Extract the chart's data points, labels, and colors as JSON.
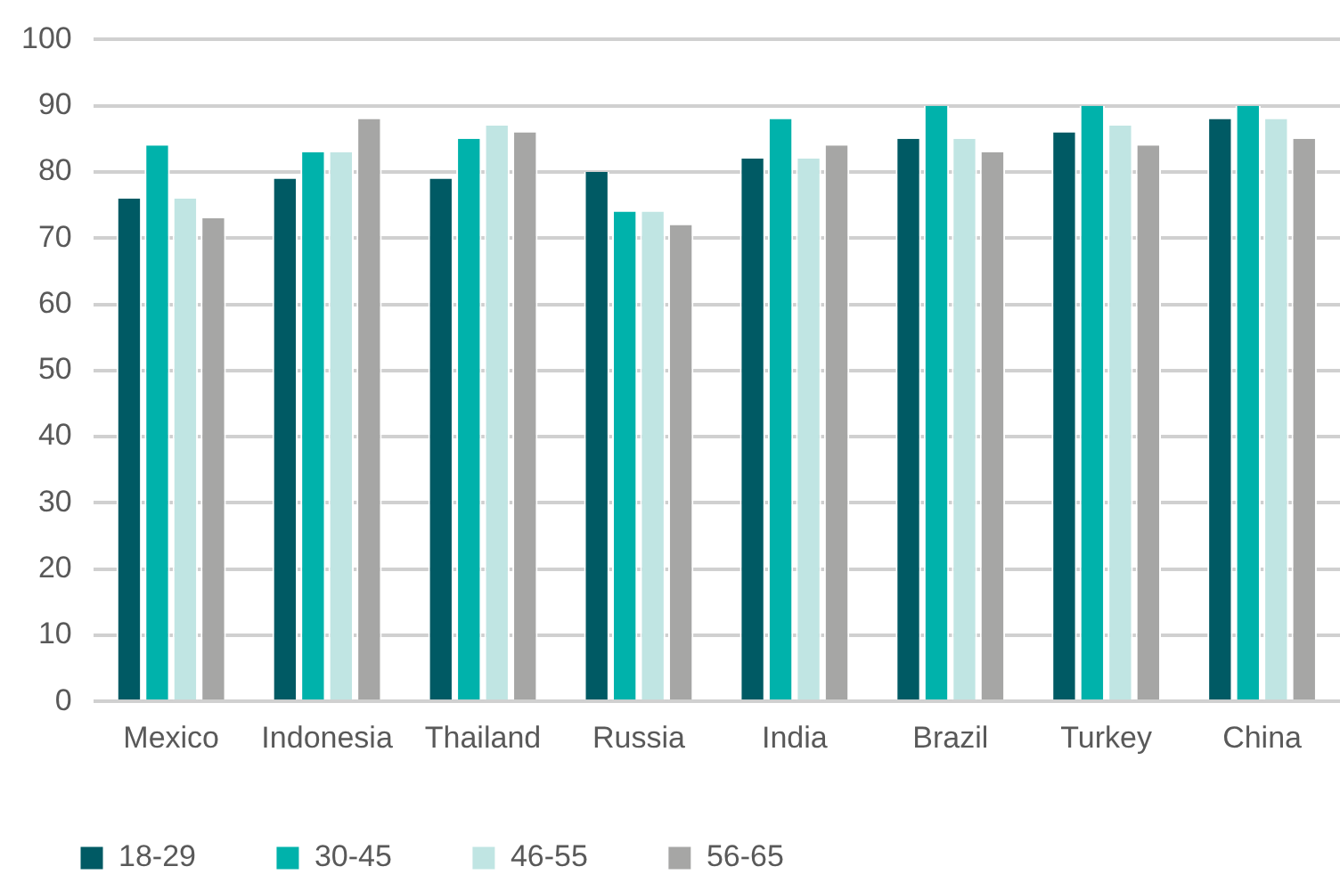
{
  "chart_data": {
    "type": "bar",
    "categories": [
      "Mexico",
      "Indonesia",
      "Thailand",
      "Russia",
      "India",
      "Brazil",
      "Turkey",
      "China"
    ],
    "series": [
      {
        "name": "18-29",
        "color": "#005a64",
        "values": [
          76,
          79,
          79,
          80,
          82,
          85,
          86,
          88
        ]
      },
      {
        "name": "30-45",
        "color": "#00b2ab",
        "values": [
          84,
          83,
          85,
          74,
          88,
          90,
          90,
          90
        ]
      },
      {
        "name": "46-55",
        "color": "#c0e5e3",
        "values": [
          76,
          83,
          87,
          74,
          82,
          85,
          87,
          88
        ]
      },
      {
        "name": "56-65",
        "color": "#a6a6a5",
        "values": [
          73,
          88,
          86,
          72,
          84,
          83,
          84,
          85
        ]
      }
    ],
    "ylim": [
      0,
      100
    ],
    "yticks": [
      0,
      10,
      20,
      30,
      40,
      50,
      60,
      70,
      80,
      90,
      100
    ],
    "grid": "y",
    "legend": "bottom"
  }
}
